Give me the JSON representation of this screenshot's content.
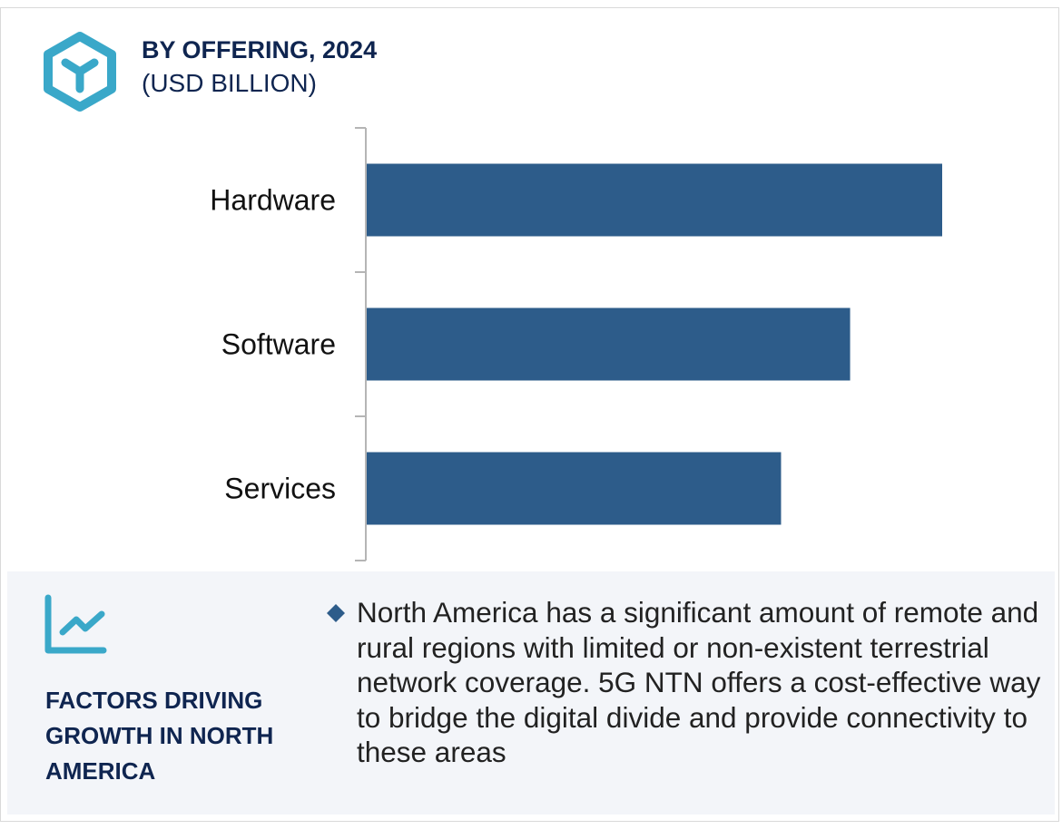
{
  "header": {
    "title": "BY OFFERING, 2024",
    "subtitle": "(USD BILLION)",
    "icon": "cube-icon"
  },
  "colors": {
    "bar": "#2d5c8a",
    "accent": "#3aa8c9",
    "title": "#0f2550",
    "panel": "#f3f5f9"
  },
  "chart_data": {
    "type": "bar",
    "orientation": "horizontal",
    "title": "BY OFFERING, 2024",
    "subtitle": "(USD BILLION)",
    "categories": [
      "Hardware",
      "Software",
      "Services"
    ],
    "values": [
      1.0,
      0.84,
      0.72
    ],
    "value_note": "relative bar lengths (no value axis shown)",
    "xlim": [
      0,
      1.05
    ],
    "grid": false
  },
  "footer": {
    "icon": "line-chart-icon",
    "heading": "FACTORS DRIVING GROWTH IN NORTH AMERICA",
    "bullet_icon": "diamond-icon",
    "text": "North America has a significant amount of remote and rural regions with limited or non-existent terrestrial network coverage. 5G NTN offers a cost-effective way to bridge the digital divide and provide connectivity to these areas"
  }
}
